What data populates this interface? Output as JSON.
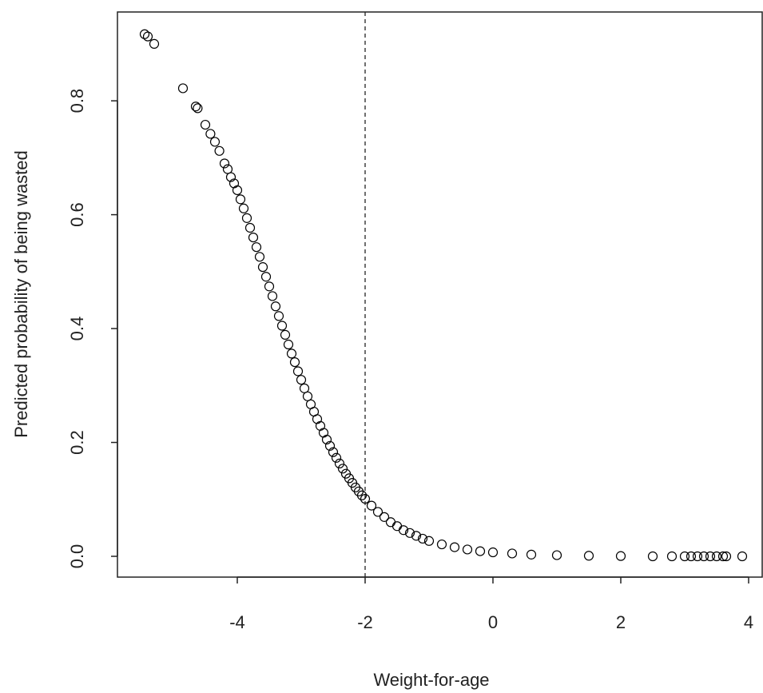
{
  "chart_data": {
    "type": "scatter",
    "x_label": "Weight-for-age",
    "y_label": "Predicted probability of being wasted",
    "xlim": [
      -5.875,
      4.225
    ],
    "ylim": [
      -0.0365,
      0.956
    ],
    "xticks": [
      -4,
      -2,
      0,
      2,
      4
    ],
    "yticks": [
      {
        "value": 0,
        "label": "0.0"
      },
      0.2,
      0.4,
      0.6,
      0.8
    ],
    "vline": -2,
    "color": "#000000",
    "x": [
      -5.45,
      -5.4,
      -5.3,
      -4.85,
      -4.65,
      -4.62,
      -4.5,
      -4.42,
      -4.35,
      -4.28,
      -4.2,
      -4.15,
      -4.1,
      -4.05,
      -4.0,
      -3.95,
      -3.9,
      -3.85,
      -3.8,
      -3.75,
      -3.7,
      -3.65,
      -3.6,
      -3.55,
      -3.5,
      -3.45,
      -3.4,
      -3.35,
      -3.3,
      -3.25,
      -3.2,
      -3.15,
      -3.1,
      -3.05,
      -3.0,
      -2.95,
      -2.9,
      -2.85,
      -2.8,
      -2.75,
      -2.7,
      -2.65,
      -2.6,
      -2.55,
      -2.5,
      -2.45,
      -2.4,
      -2.35,
      -2.3,
      -2.25,
      -2.2,
      -2.15,
      -2.1,
      -2.05,
      -2.0,
      -1.9,
      -1.8,
      -1.7,
      -1.6,
      -1.5,
      -1.4,
      -1.3,
      -1.2,
      -1.1,
      -1.0,
      -0.8,
      -0.6,
      -0.4,
      -0.2,
      0,
      0.3,
      0.6,
      1.0,
      1.5,
      2.0,
      2.5,
      2.8,
      3.0,
      3.1,
      3.2,
      3.3,
      3.4,
      3.5,
      3.6,
      3.65,
      3.9
    ],
    "y": [
      0.917,
      0.913,
      0.9,
      0.822,
      0.79,
      0.787,
      0.758,
      0.742,
      0.728,
      0.712,
      0.69,
      0.68,
      0.666,
      0.655,
      0.643,
      0.627,
      0.611,
      0.594,
      0.577,
      0.56,
      0.543,
      0.526,
      0.508,
      0.491,
      0.474,
      0.457,
      0.439,
      0.422,
      0.405,
      0.389,
      0.372,
      0.356,
      0.341,
      0.325,
      0.31,
      0.295,
      0.281,
      0.267,
      0.254,
      0.241,
      0.229,
      0.217,
      0.205,
      0.194,
      0.183,
      0.173,
      0.163,
      0.154,
      0.145,
      0.137,
      0.129,
      0.121,
      0.114,
      0.107,
      0.101,
      0.089,
      0.078,
      0.069,
      0.06,
      0.053,
      0.046,
      0.041,
      0.036,
      0.031,
      0.027,
      0.021,
      0.016,
      0.012,
      0.009,
      0.007,
      0.005,
      0.003,
      0.002,
      0.001,
      0.0005,
      0,
      0,
      0,
      0,
      0,
      0,
      0,
      0,
      0,
      0,
      0
    ]
  }
}
